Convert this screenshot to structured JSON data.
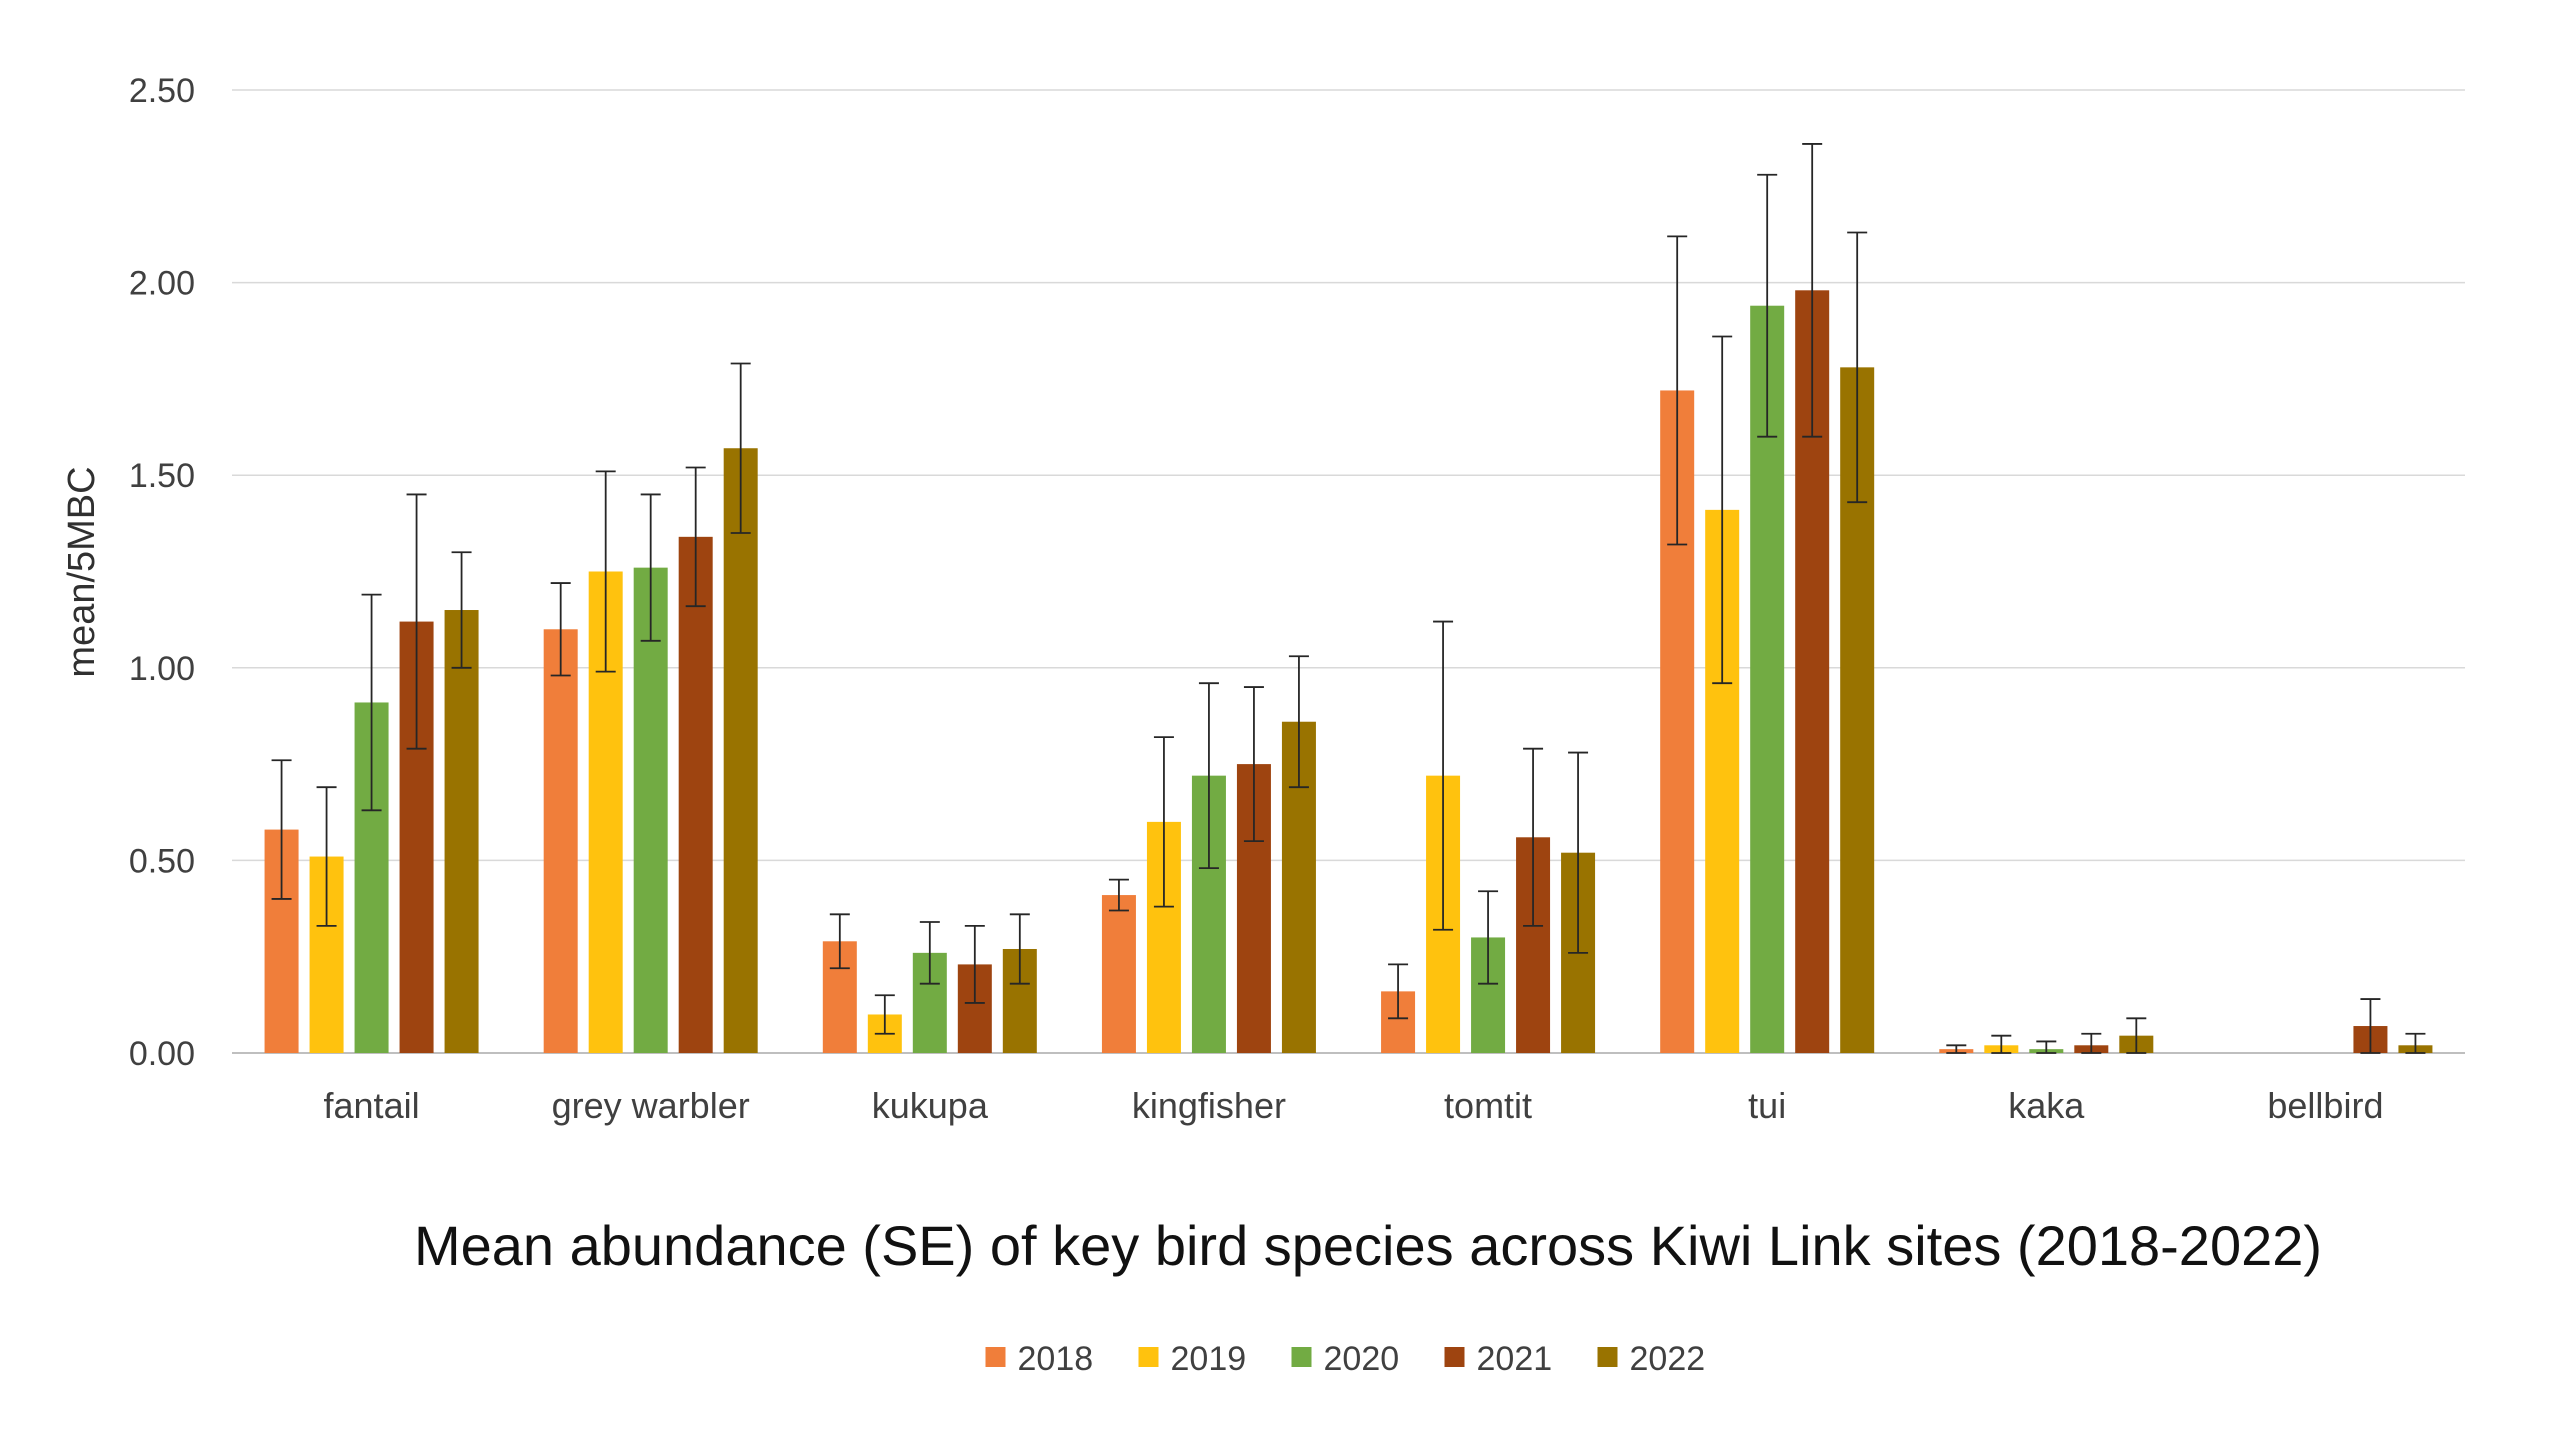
{
  "chart_data": {
    "type": "bar",
    "title": "Mean abundance (SE) of key bird species across Kiwi Link sites (2018-2022)",
    "xlabel": "",
    "ylabel": "mean/5MBC",
    "ylim": [
      0,
      2.5
    ],
    "yticks": [
      "0.00",
      "0.50",
      "1.00",
      "1.50",
      "2.00",
      "2.50"
    ],
    "grid": true,
    "legend_position": "bottom",
    "categories": [
      "fantail",
      "grey warbler",
      "kukupa",
      "kingfisher",
      "tomtit",
      "tui",
      "kaka",
      "bellbird"
    ],
    "series": [
      {
        "name": "2018",
        "color": "#F07E3A",
        "values": [
          0.58,
          1.1,
          0.29,
          0.41,
          0.16,
          1.72,
          0.01,
          0
        ],
        "errors": [
          0.18,
          0.12,
          0.07,
          0.04,
          0.07,
          0.4,
          0.01,
          0
        ]
      },
      {
        "name": "2019",
        "color": "#FFC20E",
        "values": [
          0.51,
          1.25,
          0.1,
          0.6,
          0.72,
          1.41,
          0.02,
          0
        ],
        "errors": [
          0.18,
          0.26,
          0.05,
          0.22,
          0.4,
          0.45,
          0.025,
          0
        ]
      },
      {
        "name": "2020",
        "color": "#72AB43",
        "values": [
          0.91,
          1.26,
          0.26,
          0.72,
          0.3,
          1.94,
          0.01,
          0
        ],
        "errors": [
          0.28,
          0.19,
          0.08,
          0.24,
          0.12,
          0.34,
          0.02,
          0
        ]
      },
      {
        "name": "2021",
        "color": "#9E4410",
        "values": [
          1.12,
          1.34,
          0.23,
          0.75,
          0.56,
          1.98,
          0.02,
          0.07
        ],
        "errors": [
          0.33,
          0.18,
          0.1,
          0.2,
          0.23,
          0.38,
          0.03,
          0.07
        ]
      },
      {
        "name": "2022",
        "color": "#997300",
        "values": [
          1.15,
          1.57,
          0.27,
          0.86,
          0.52,
          1.78,
          0.045,
          0.02
        ],
        "errors": [
          0.15,
          0.22,
          0.09,
          0.17,
          0.26,
          0.35,
          0.045,
          0.03
        ]
      }
    ]
  }
}
